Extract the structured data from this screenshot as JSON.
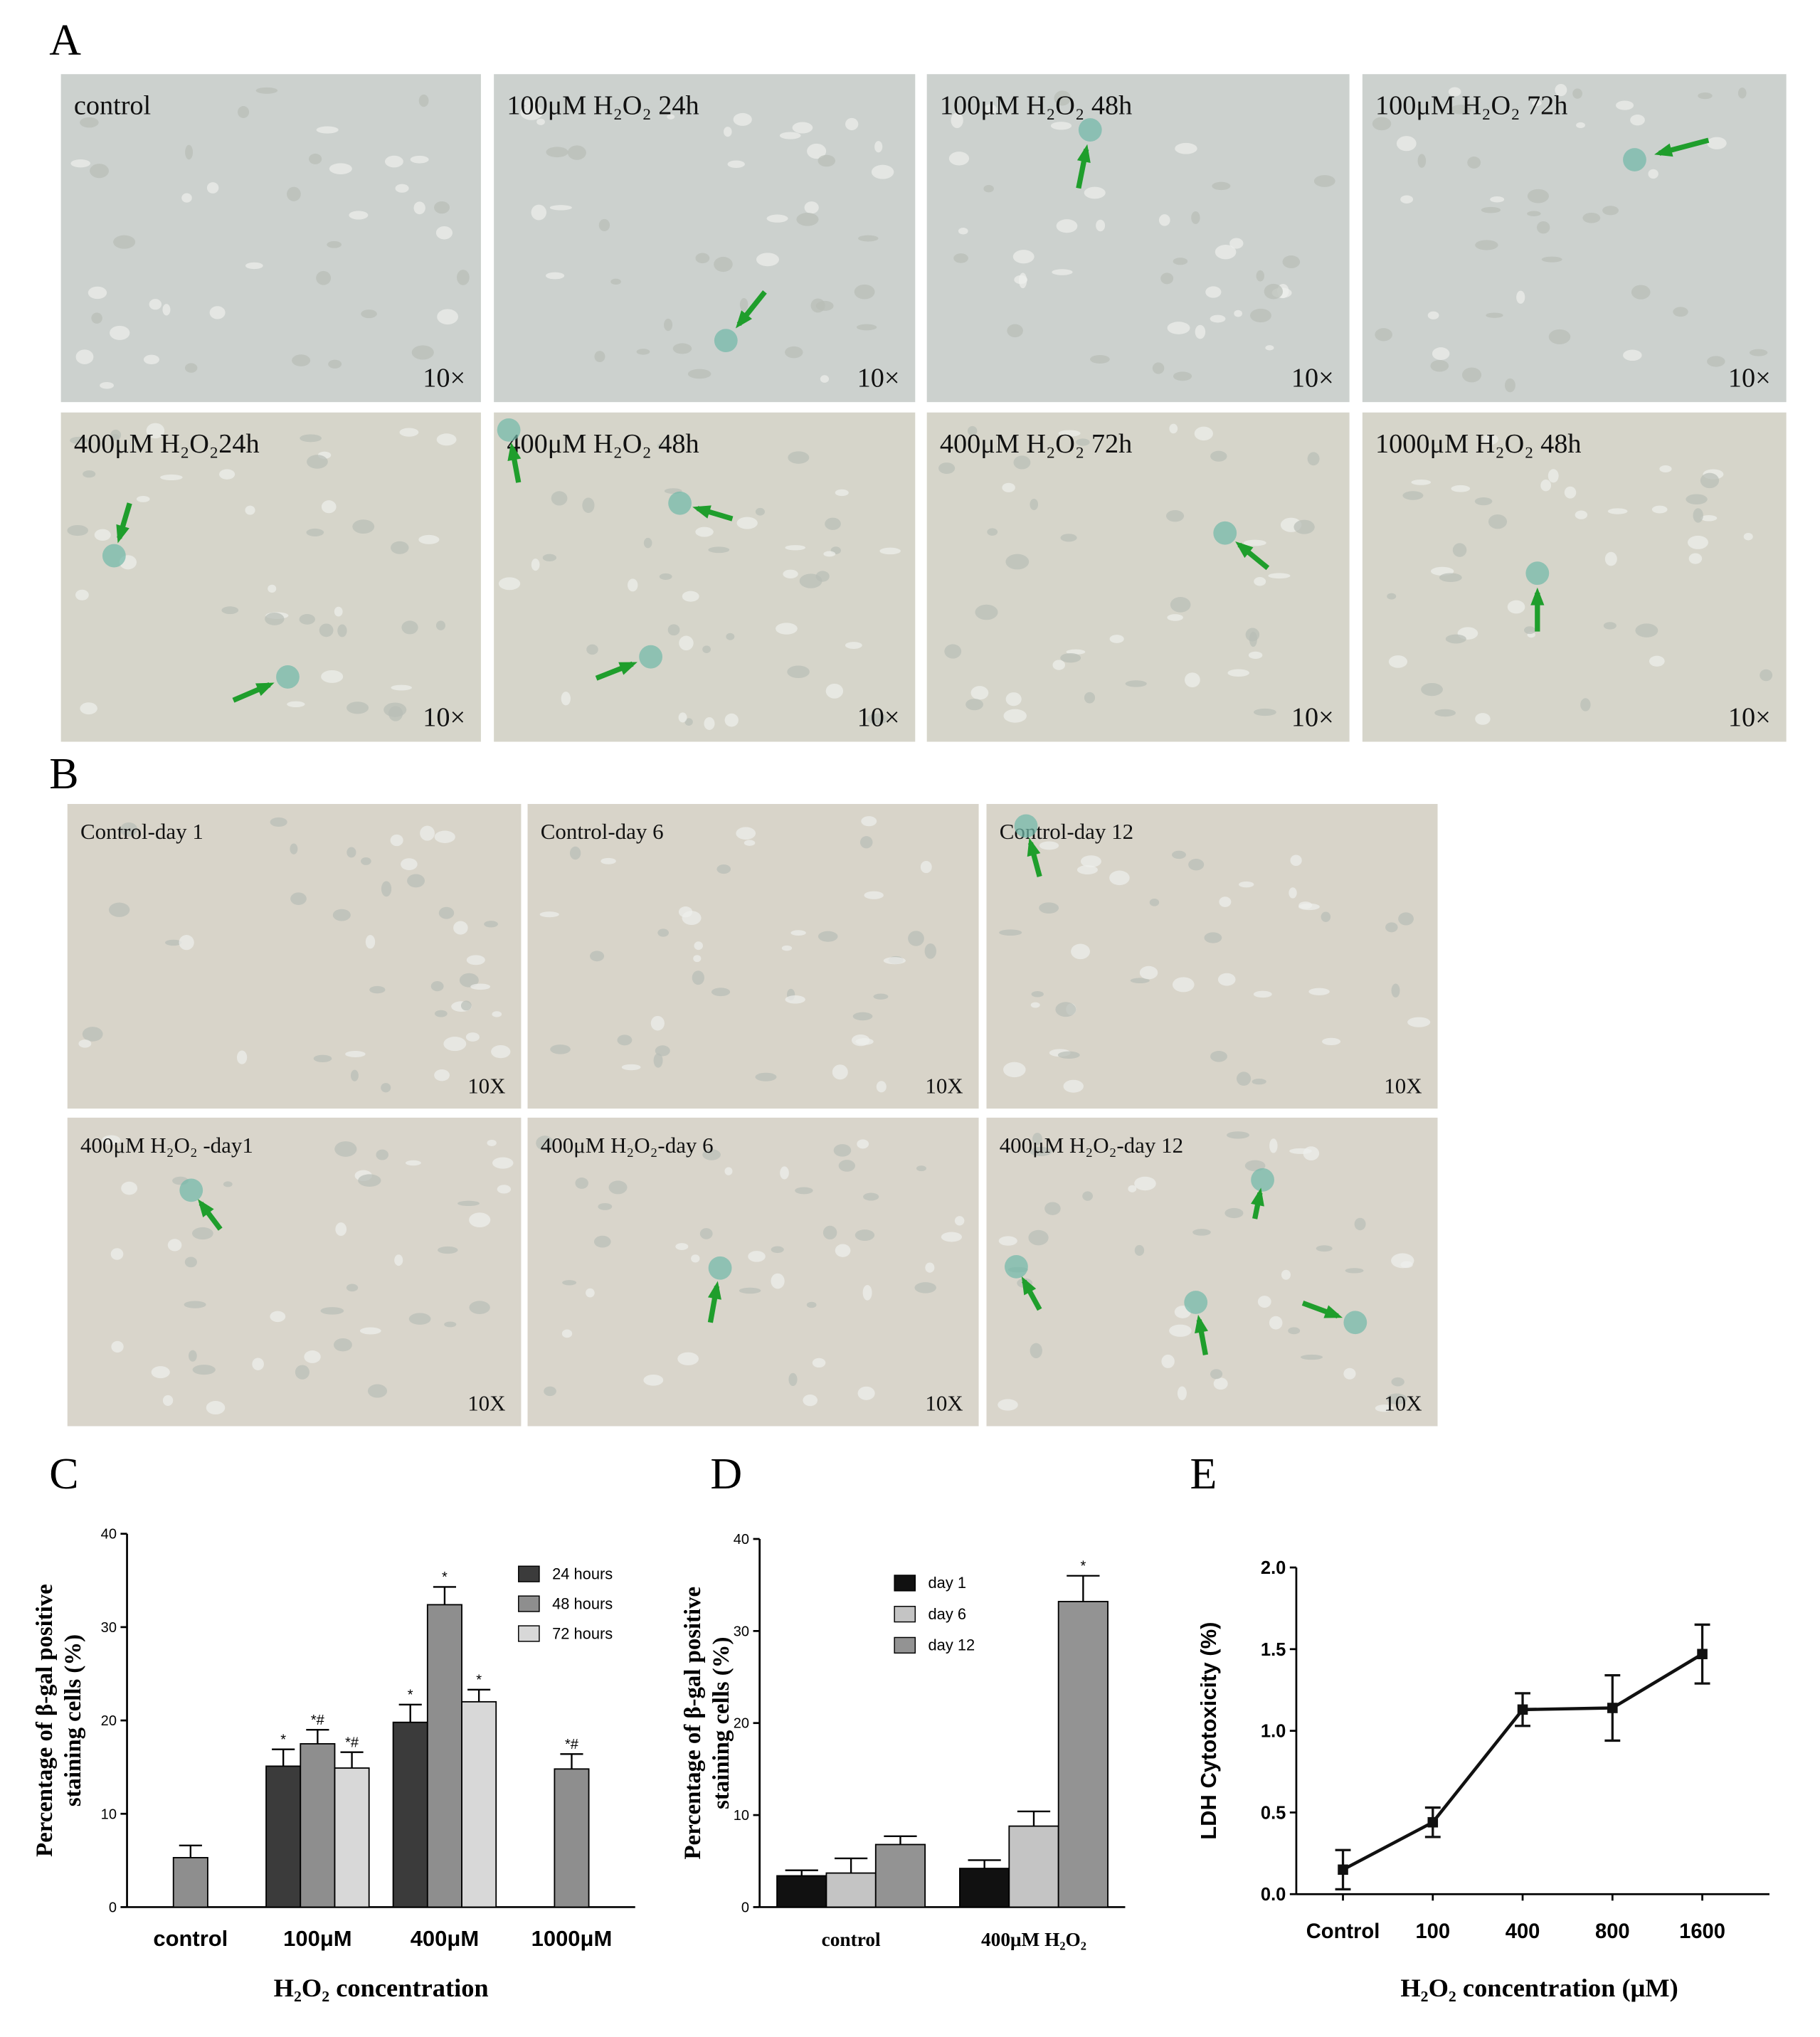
{
  "panel_labels": [
    "A",
    "B",
    "C",
    "D",
    "E"
  ],
  "panels": {
    "A": [
      {
        "label": "control",
        "magnification": "10×"
      },
      {
        "label": "100μM H₂O₂ 24h",
        "magnification": "10×"
      },
      {
        "label": "100μM H₂O₂ 48h",
        "magnification": "10×"
      },
      {
        "label": "100μM  H₂O₂ 72h",
        "magnification": "10×"
      },
      {
        "label": "400μM H₂O₂24h",
        "magnification": "10×"
      },
      {
        "label": "400μM H₂O₂ 48h",
        "magnification": "10×"
      },
      {
        "label": "400μM  H₂O₂ 72h",
        "magnification": "10×"
      },
      {
        "label": "1000μM H₂O₂ 48h",
        "magnification": "10×"
      }
    ],
    "B": [
      {
        "label": "Control-day 1",
        "magnification": "10X"
      },
      {
        "label": "Control-day 6",
        "magnification": "10X"
      },
      {
        "label": "Control-day 12",
        "magnification": "10X"
      },
      {
        "label": "400μM H₂O₂ -day1",
        "magnification": "10X"
      },
      {
        "label": "400μM H₂O₂-day 6",
        "magnification": "10X"
      },
      {
        "label": "400μM H₂O₂-day 12",
        "magnification": "10X"
      }
    ]
  },
  "chart_data": [
    {
      "type": "bar",
      "ylabel_lines": [
        "Percentage of β-gal positive",
        "staining cells (%)"
      ],
      "xlabel": "H₂O₂ concentration",
      "categories": [
        "control",
        "100μM",
        "400μM",
        "1000μM"
      ],
      "series": [
        {
          "name": "24 hours",
          "color": "#3b3b3b",
          "values": [
            null,
            15.1,
            19.8,
            null
          ],
          "errors": [
            null,
            1.8,
            1.9,
            null
          ],
          "significance": [
            null,
            "*",
            "*",
            null
          ]
        },
        {
          "name": "48 hours",
          "color": "#8e8e8e",
          "values": [
            5.3,
            17.5,
            32.4,
            14.8
          ],
          "errors": [
            1.3,
            1.5,
            1.9,
            1.6
          ],
          "significance": [
            null,
            "*#",
            "*",
            "*#"
          ]
        },
        {
          "name": "72 hours",
          "color": "#d8d8d8",
          "values": [
            null,
            14.9,
            22.0,
            null
          ],
          "errors": [
            null,
            1.7,
            1.3,
            null
          ],
          "significance": [
            null,
            "*#",
            "*",
            null
          ]
        }
      ],
      "ylim": [
        0,
        40
      ],
      "yticks": [
        0,
        10,
        20,
        30,
        40
      ]
    },
    {
      "type": "bar",
      "ylabel_lines": [
        "Percentage of β-gal positive",
        "staining cells (%)"
      ],
      "categories": [
        "control",
        "400μM H₂O₂"
      ],
      "series": [
        {
          "name": "day 1",
          "color": "#111111",
          "values": [
            3.4,
            4.2
          ],
          "errors": [
            0.6,
            0.9
          ],
          "significance": [
            null,
            null
          ]
        },
        {
          "name": "day 6",
          "color": "#c4c4c4",
          "values": [
            3.7,
            8.8
          ],
          "errors": [
            1.6,
            1.6
          ],
          "significance": [
            null,
            null
          ]
        },
        {
          "name": "day 12",
          "color": "#939393",
          "values": [
            6.8,
            33.2
          ],
          "errors": [
            0.9,
            2.8
          ],
          "significance": [
            null,
            "*"
          ]
        }
      ],
      "ylim": [
        0,
        40
      ],
      "yticks": [
        0,
        10,
        20,
        30,
        40
      ]
    },
    {
      "type": "line",
      "ylabel": "LDH Cytotoxicity (%)",
      "xlabel": "H₂O₂ concentration (μM)",
      "categories": [
        "Control",
        "100",
        "400",
        "800",
        "1600"
      ],
      "values": [
        0.15,
        0.44,
        1.13,
        1.14,
        1.47
      ],
      "errors": [
        0.12,
        0.09,
        0.1,
        0.2,
        0.18
      ],
      "color": "#111111",
      "ylim": [
        0,
        2
      ],
      "yticks": [
        {
          "value": 0,
          "label": "0.0"
        },
        {
          "value": 0.5,
          "label": "0.5"
        },
        {
          "value": 1,
          "label": "1.0"
        },
        {
          "value": 1.5,
          "label": "1.5"
        },
        {
          "value": 2,
          "label": "2.0"
        }
      ]
    }
  ]
}
